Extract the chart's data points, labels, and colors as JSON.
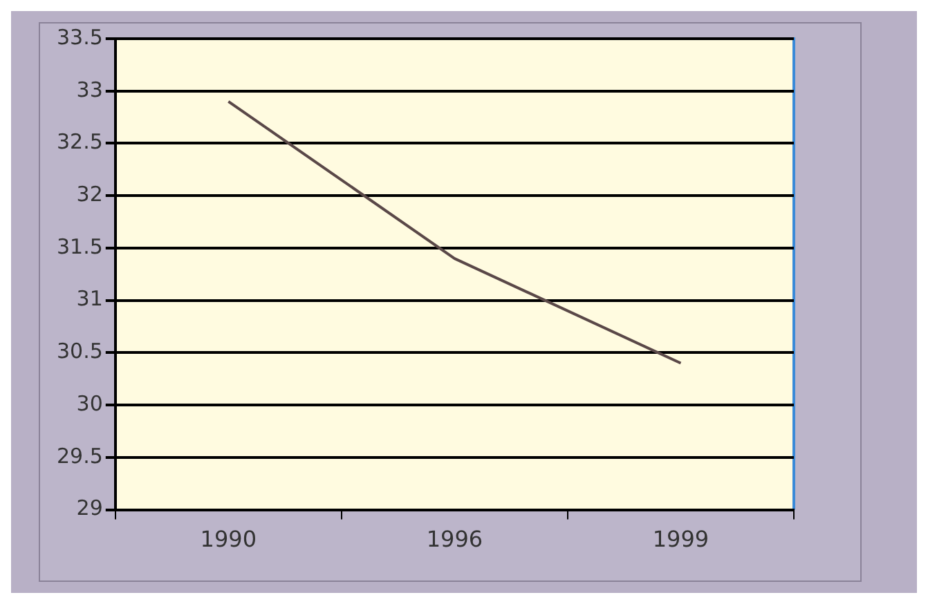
{
  "chart_data": {
    "type": "line",
    "categories": [
      "1990",
      "1996",
      "1999"
    ],
    "series": [
      {
        "color": "#5a4848",
        "values": [
          32.9,
          31.4,
          30.4
        ]
      }
    ],
    "ylim": [
      29,
      33.5
    ],
    "yticks": [
      29,
      29.5,
      30,
      30.5,
      31,
      31.5,
      32,
      32.5,
      33,
      33.5
    ],
    "grid": "y",
    "legend": false,
    "marker": "none"
  }
}
